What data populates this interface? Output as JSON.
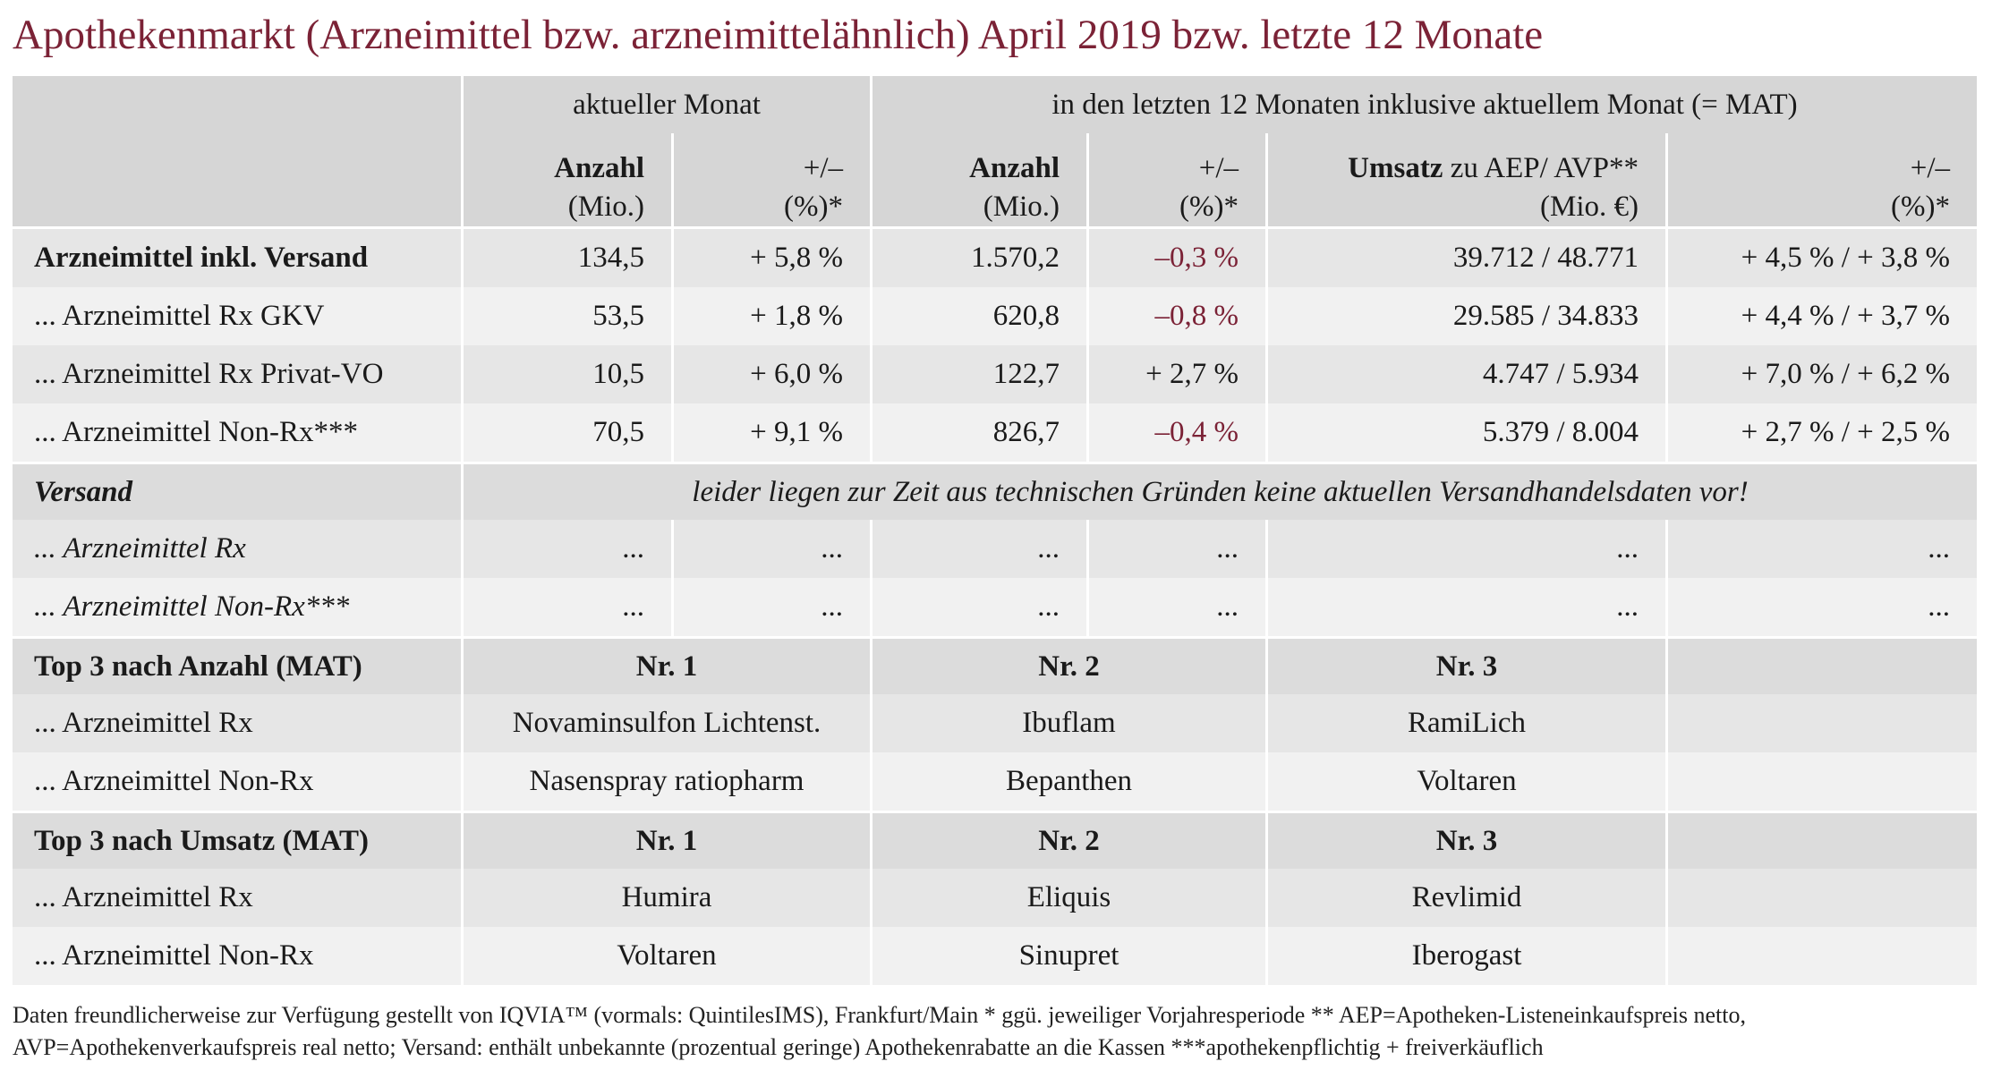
{
  "title": "Apothekenmarkt (Arzneimittel bzw. arzneimittelähnlich) April 2019 bzw. letzte 12 Monate",
  "table": {
    "group_headers": [
      "aktueller Monat",
      "in den letzten 12 Monaten inklusive aktuellem Monat (= MAT)"
    ],
    "column_headers": [
      {
        "label": "Anzahl",
        "unit": "(Mio.)"
      },
      {
        "label": "+/–",
        "unit": "(%)*"
      },
      {
        "label": "Anzahl",
        "unit": "(Mio.)"
      },
      {
        "label": "+/–",
        "unit": "(%)*"
      },
      {
        "label": "Umsatz",
        "label_extra": "zu AEP/ AVP**",
        "unit": "(Mio. €)"
      },
      {
        "label": "+/–",
        "unit": "(%)*"
      }
    ],
    "rows": [
      {
        "label": "Arzneimittel inkl. Versand",
        "cells": [
          "134,5",
          "+ 5,8 %",
          "1.570,2",
          "–0,3 %",
          "39.712 / 48.771",
          "+ 4,5 % / + 3,8 %"
        ]
      },
      {
        "label": "... Arzneimittel Rx GKV",
        "cells": [
          "53,5",
          "+ 1,8 %",
          "620,8",
          "–0,8 %",
          "29.585 / 34.833",
          "+ 4,4 % / + 3,7 %"
        ]
      },
      {
        "label": "... Arzneimittel Rx Privat-VO",
        "cells": [
          "10,5",
          "+ 6,0 %",
          "122,7",
          "+ 2,7 %",
          "4.747 / 5.934",
          "+ 7,0 % / + 6,2 %"
        ]
      },
      {
        "label": "... Arzneimittel Non-Rx***",
        "cells": [
          "70,5",
          "+ 9,1 %",
          "826,7",
          "–0,4 %",
          "5.379 / 8.004",
          "+ 2,7 % / + 2,5 %"
        ]
      }
    ],
    "versand": {
      "label": "Versand",
      "note": "leider liegen zur Zeit aus technischen Gründen keine aktuellen Versandhandelsdaten vor!",
      "rows": [
        {
          "label": "... Arzneimittel Rx",
          "cells": [
            "...",
            "...",
            "...",
            "...",
            "...",
            "..."
          ]
        },
        {
          "label": "... Arzneimittel Non-Rx***",
          "cells": [
            "...",
            "...",
            "...",
            "...",
            "...",
            "..."
          ]
        }
      ]
    },
    "top_anzahl": {
      "label": "Top 3 nach Anzahl (MAT)",
      "headers": [
        "Nr. 1",
        "Nr. 2",
        "Nr. 3"
      ],
      "rows": [
        {
          "label": "... Arzneimittel Rx",
          "cells": [
            "Novaminsulfon Lichtenst.",
            "Ibuflam",
            "RamiLich"
          ]
        },
        {
          "label": "... Arzneimittel Non-Rx",
          "cells": [
            "Nasenspray ratiopharm",
            "Bepanthen",
            "Voltaren"
          ]
        }
      ]
    },
    "top_umsatz": {
      "label": "Top 3 nach Umsatz (MAT)",
      "headers": [
        "Nr. 1",
        "Nr. 2",
        "Nr. 3"
      ],
      "rows": [
        {
          "label": "... Arzneimittel Rx",
          "cells": [
            "Humira",
            "Eliquis",
            "Revlimid"
          ]
        },
        {
          "label": "... Arzneimittel Non-Rx",
          "cells": [
            "Voltaren",
            "Sinupret",
            "Iberogast"
          ]
        }
      ]
    }
  },
  "footnotes": [
    "Daten freundlicherweise zur Verfügung gestellt von IQVIA™ (vormals: QuintilesIMS), Frankfurt/Main  * ggü. jeweiliger Vorjahresperiode  ** AEP=Apotheken-Listeneinkaufspreis netto,",
    "AVP=Apothekenverkaufspreis real netto; Versand: enthält unbekannte (prozentual geringe) Apothekenrabatte an die Kassen   ***apothekenpflichtig + freiverkäuflich"
  ]
}
